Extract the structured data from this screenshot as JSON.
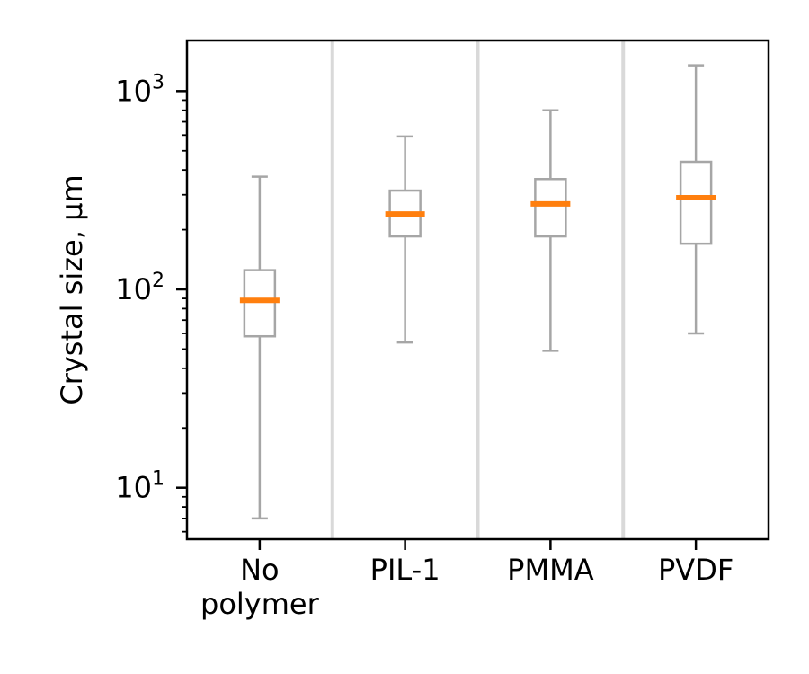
{
  "chart_data": {
    "type": "boxplot",
    "title": "",
    "xlabel": "",
    "ylabel": "Crystal size, µm",
    "yscale": "log",
    "ylim": [
      5.5,
      1800
    ],
    "yticks": [
      {
        "value": 10,
        "base": "10",
        "exp": "1"
      },
      {
        "value": 100,
        "base": "10",
        "exp": "2"
      },
      {
        "value": 1000,
        "base": "10",
        "exp": "3"
      }
    ],
    "categories": [
      {
        "lines": [
          "No",
          "polymer"
        ]
      },
      {
        "lines": [
          "PIL-1"
        ]
      },
      {
        "lines": [
          "PMMA"
        ]
      },
      {
        "lines": [
          "PVDF"
        ]
      }
    ],
    "boxes": [
      {
        "whisker_low": 7,
        "q1": 58,
        "median": 88,
        "q3": 125,
        "whisker_high": 370
      },
      {
        "whisker_low": 54,
        "q1": 185,
        "median": 240,
        "q3": 315,
        "whisker_high": 590
      },
      {
        "whisker_low": 49,
        "q1": 185,
        "median": 270,
        "q3": 360,
        "whisker_high": 800
      },
      {
        "whisker_low": 60,
        "q1": 170,
        "median": 290,
        "q3": 440,
        "whisker_high": 1350
      }
    ],
    "grid": false,
    "separators": true,
    "colors": {
      "median": "#ff7f0e",
      "box": "#a6a6a6",
      "whisker": "#a6a6a6",
      "separator": "#d9d9d9",
      "axis": "#000000"
    }
  }
}
